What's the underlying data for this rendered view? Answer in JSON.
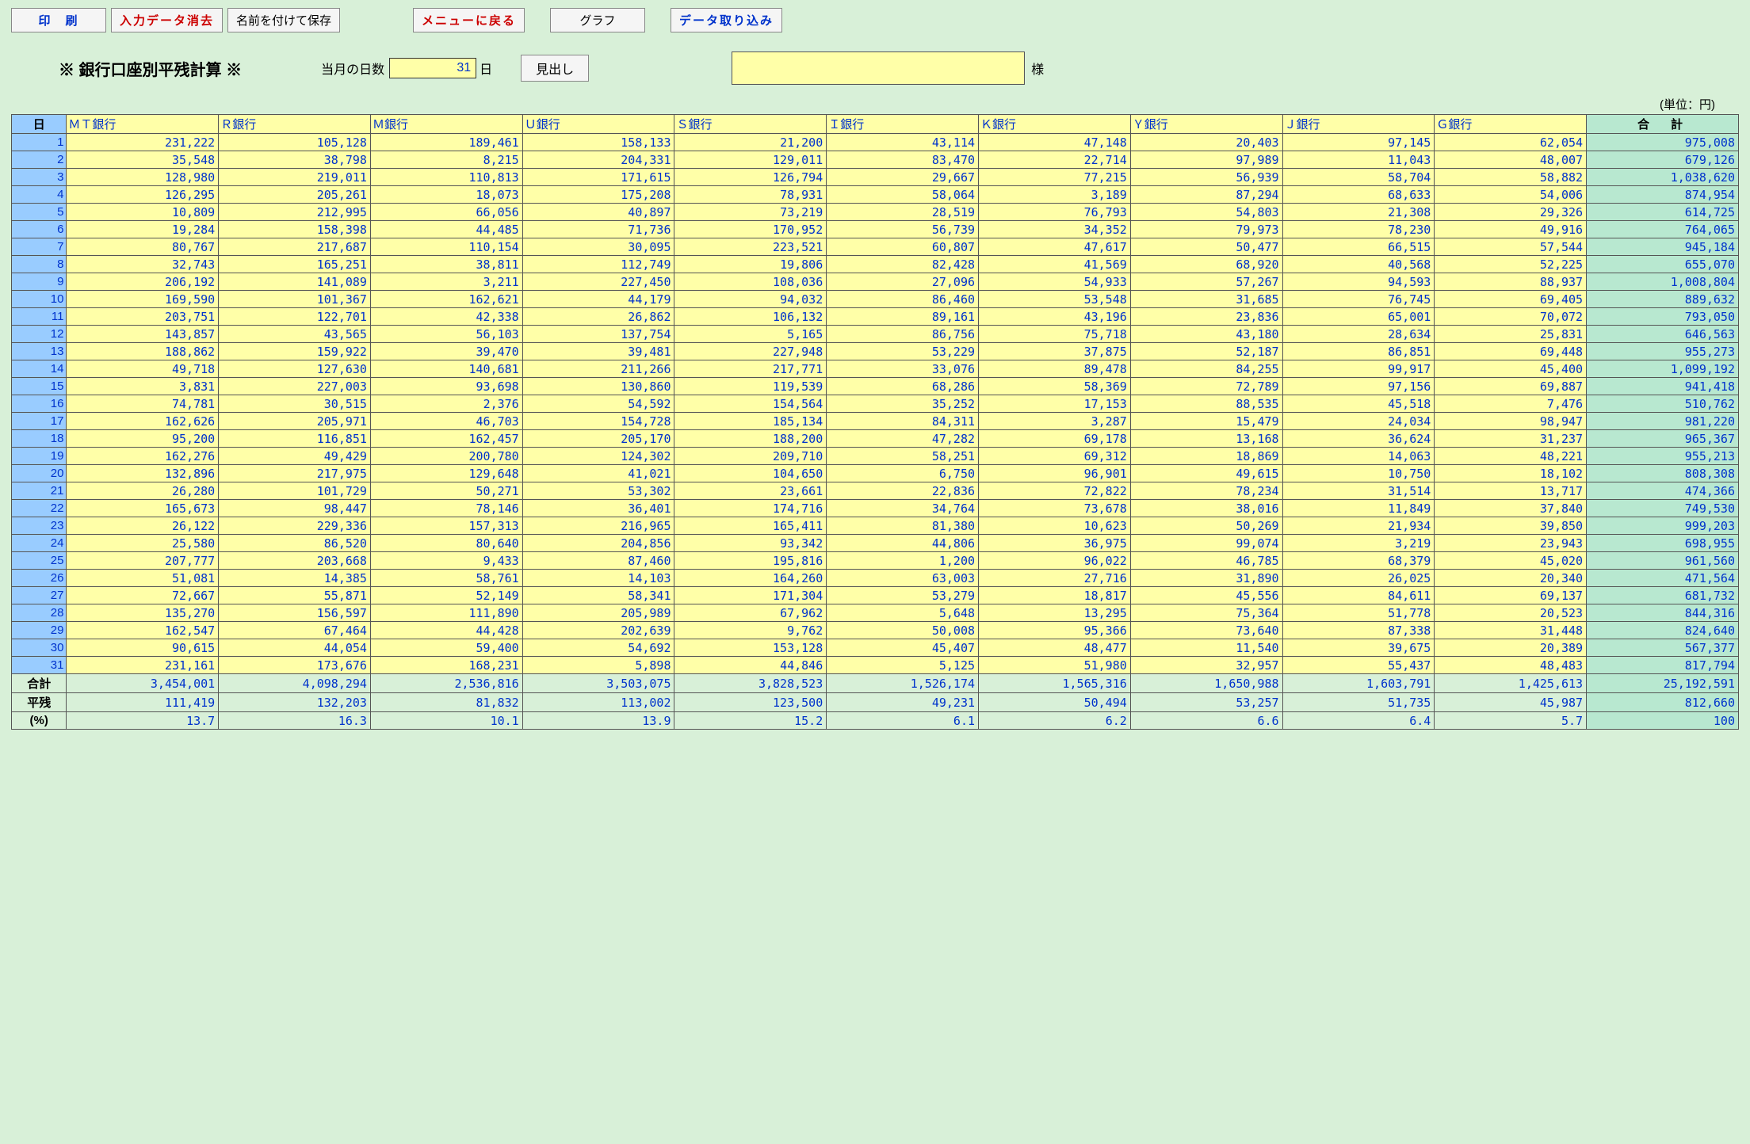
{
  "toolbar": {
    "print": "印　刷",
    "clear": "入力データ消去",
    "save_as": "名前を付けて保存",
    "back_menu": "メニューに戻る",
    "graph": "グラフ",
    "import": "データ取り込み"
  },
  "title": "※ 銀行口座別平残計算 ※",
  "days_label": "当月の日数",
  "days_value": "31",
  "days_suffix": "日",
  "midashi": "見出し",
  "sama": "様",
  "unit": "(単位：円)",
  "headers": {
    "day": "日",
    "banks": [
      "ＭＴ銀行",
      "Ｒ銀行",
      "Ｍ銀行",
      "Ｕ銀行",
      "Ｓ銀行",
      "Ｉ銀行",
      "Ｋ銀行",
      "Ｙ銀行",
      "Ｊ銀行",
      "Ｇ銀行"
    ],
    "total": "合　計"
  },
  "rows": [
    {
      "d": 1,
      "v": [
        "231,222",
        "105,128",
        "189,461",
        "158,133",
        "21,200",
        "43,114",
        "47,148",
        "20,403",
        "97,145",
        "62,054"
      ],
      "t": "975,008"
    },
    {
      "d": 2,
      "v": [
        "35,548",
        "38,798",
        "8,215",
        "204,331",
        "129,011",
        "83,470",
        "22,714",
        "97,989",
        "11,043",
        "48,007"
      ],
      "t": "679,126"
    },
    {
      "d": 3,
      "v": [
        "128,980",
        "219,011",
        "110,813",
        "171,615",
        "126,794",
        "29,667",
        "77,215",
        "56,939",
        "58,704",
        "58,882"
      ],
      "t": "1,038,620"
    },
    {
      "d": 4,
      "v": [
        "126,295",
        "205,261",
        "18,073",
        "175,208",
        "78,931",
        "58,064",
        "3,189",
        "87,294",
        "68,633",
        "54,006"
      ],
      "t": "874,954"
    },
    {
      "d": 5,
      "v": [
        "10,809",
        "212,995",
        "66,056",
        "40,897",
        "73,219",
        "28,519",
        "76,793",
        "54,803",
        "21,308",
        "29,326"
      ],
      "t": "614,725"
    },
    {
      "d": 6,
      "v": [
        "19,284",
        "158,398",
        "44,485",
        "71,736",
        "170,952",
        "56,739",
        "34,352",
        "79,973",
        "78,230",
        "49,916"
      ],
      "t": "764,065"
    },
    {
      "d": 7,
      "v": [
        "80,767",
        "217,687",
        "110,154",
        "30,095",
        "223,521",
        "60,807",
        "47,617",
        "50,477",
        "66,515",
        "57,544"
      ],
      "t": "945,184"
    },
    {
      "d": 8,
      "v": [
        "32,743",
        "165,251",
        "38,811",
        "112,749",
        "19,806",
        "82,428",
        "41,569",
        "68,920",
        "40,568",
        "52,225"
      ],
      "t": "655,070"
    },
    {
      "d": 9,
      "v": [
        "206,192",
        "141,089",
        "3,211",
        "227,450",
        "108,036",
        "27,096",
        "54,933",
        "57,267",
        "94,593",
        "88,937"
      ],
      "t": "1,008,804"
    },
    {
      "d": 10,
      "v": [
        "169,590",
        "101,367",
        "162,621",
        "44,179",
        "94,032",
        "86,460",
        "53,548",
        "31,685",
        "76,745",
        "69,405"
      ],
      "t": "889,632"
    },
    {
      "d": 11,
      "v": [
        "203,751",
        "122,701",
        "42,338",
        "26,862",
        "106,132",
        "89,161",
        "43,196",
        "23,836",
        "65,001",
        "70,072"
      ],
      "t": "793,050"
    },
    {
      "d": 12,
      "v": [
        "143,857",
        "43,565",
        "56,103",
        "137,754",
        "5,165",
        "86,756",
        "75,718",
        "43,180",
        "28,634",
        "25,831"
      ],
      "t": "646,563"
    },
    {
      "d": 13,
      "v": [
        "188,862",
        "159,922",
        "39,470",
        "39,481",
        "227,948",
        "53,229",
        "37,875",
        "52,187",
        "86,851",
        "69,448"
      ],
      "t": "955,273"
    },
    {
      "d": 14,
      "v": [
        "49,718",
        "127,630",
        "140,681",
        "211,266",
        "217,771",
        "33,076",
        "89,478",
        "84,255",
        "99,917",
        "45,400"
      ],
      "t": "1,099,192"
    },
    {
      "d": 15,
      "v": [
        "3,831",
        "227,003",
        "93,698",
        "130,860",
        "119,539",
        "68,286",
        "58,369",
        "72,789",
        "97,156",
        "69,887"
      ],
      "t": "941,418"
    },
    {
      "d": 16,
      "v": [
        "74,781",
        "30,515",
        "2,376",
        "54,592",
        "154,564",
        "35,252",
        "17,153",
        "88,535",
        "45,518",
        "7,476"
      ],
      "t": "510,762"
    },
    {
      "d": 17,
      "v": [
        "162,626",
        "205,971",
        "46,703",
        "154,728",
        "185,134",
        "84,311",
        "3,287",
        "15,479",
        "24,034",
        "98,947"
      ],
      "t": "981,220"
    },
    {
      "d": 18,
      "v": [
        "95,200",
        "116,851",
        "162,457",
        "205,170",
        "188,200",
        "47,282",
        "69,178",
        "13,168",
        "36,624",
        "31,237"
      ],
      "t": "965,367"
    },
    {
      "d": 19,
      "v": [
        "162,276",
        "49,429",
        "200,780",
        "124,302",
        "209,710",
        "58,251",
        "69,312",
        "18,869",
        "14,063",
        "48,221"
      ],
      "t": "955,213"
    },
    {
      "d": 20,
      "v": [
        "132,896",
        "217,975",
        "129,648",
        "41,021",
        "104,650",
        "6,750",
        "96,901",
        "49,615",
        "10,750",
        "18,102"
      ],
      "t": "808,308"
    },
    {
      "d": 21,
      "v": [
        "26,280",
        "101,729",
        "50,271",
        "53,302",
        "23,661",
        "22,836",
        "72,822",
        "78,234",
        "31,514",
        "13,717"
      ],
      "t": "474,366"
    },
    {
      "d": 22,
      "v": [
        "165,673",
        "98,447",
        "78,146",
        "36,401",
        "174,716",
        "34,764",
        "73,678",
        "38,016",
        "11,849",
        "37,840"
      ],
      "t": "749,530"
    },
    {
      "d": 23,
      "v": [
        "26,122",
        "229,336",
        "157,313",
        "216,965",
        "165,411",
        "81,380",
        "10,623",
        "50,269",
        "21,934",
        "39,850"
      ],
      "t": "999,203"
    },
    {
      "d": 24,
      "v": [
        "25,580",
        "86,520",
        "80,640",
        "204,856",
        "93,342",
        "44,806",
        "36,975",
        "99,074",
        "3,219",
        "23,943"
      ],
      "t": "698,955"
    },
    {
      "d": 25,
      "v": [
        "207,777",
        "203,668",
        "9,433",
        "87,460",
        "195,816",
        "1,200",
        "96,022",
        "46,785",
        "68,379",
        "45,020"
      ],
      "t": "961,560"
    },
    {
      "d": 26,
      "v": [
        "51,081",
        "14,385",
        "58,761",
        "14,103",
        "164,260",
        "63,003",
        "27,716",
        "31,890",
        "26,025",
        "20,340"
      ],
      "t": "471,564"
    },
    {
      "d": 27,
      "v": [
        "72,667",
        "55,871",
        "52,149",
        "58,341",
        "171,304",
        "53,279",
        "18,817",
        "45,556",
        "84,611",
        "69,137"
      ],
      "t": "681,732"
    },
    {
      "d": 28,
      "v": [
        "135,270",
        "156,597",
        "111,890",
        "205,989",
        "67,962",
        "5,648",
        "13,295",
        "75,364",
        "51,778",
        "20,523"
      ],
      "t": "844,316"
    },
    {
      "d": 29,
      "v": [
        "162,547",
        "67,464",
        "44,428",
        "202,639",
        "9,762",
        "50,008",
        "95,366",
        "73,640",
        "87,338",
        "31,448"
      ],
      "t": "824,640"
    },
    {
      "d": 30,
      "v": [
        "90,615",
        "44,054",
        "59,400",
        "54,692",
        "153,128",
        "45,407",
        "48,477",
        "11,540",
        "39,675",
        "20,389"
      ],
      "t": "567,377"
    },
    {
      "d": 31,
      "v": [
        "231,161",
        "173,676",
        "168,231",
        "5,898",
        "44,846",
        "5,125",
        "51,980",
        "32,957",
        "55,437",
        "48,483"
      ],
      "t": "817,794"
    }
  ],
  "summary": [
    {
      "label": "合計",
      "v": [
        "3,454,001",
        "4,098,294",
        "2,536,816",
        "3,503,075",
        "3,828,523",
        "1,526,174",
        "1,565,316",
        "1,650,988",
        "1,603,791",
        "1,425,613"
      ],
      "t": "25,192,591"
    },
    {
      "label": "平残",
      "v": [
        "111,419",
        "132,203",
        "81,832",
        "113,002",
        "123,500",
        "49,231",
        "50,494",
        "53,257",
        "51,735",
        "45,987"
      ],
      "t": "812,660"
    },
    {
      "label": "(%)",
      "v": [
        "13.7",
        "16.3",
        "10.1",
        "13.9",
        "15.2",
        "6.1",
        "6.2",
        "6.6",
        "6.4",
        "5.7"
      ],
      "t": "100"
    }
  ]
}
